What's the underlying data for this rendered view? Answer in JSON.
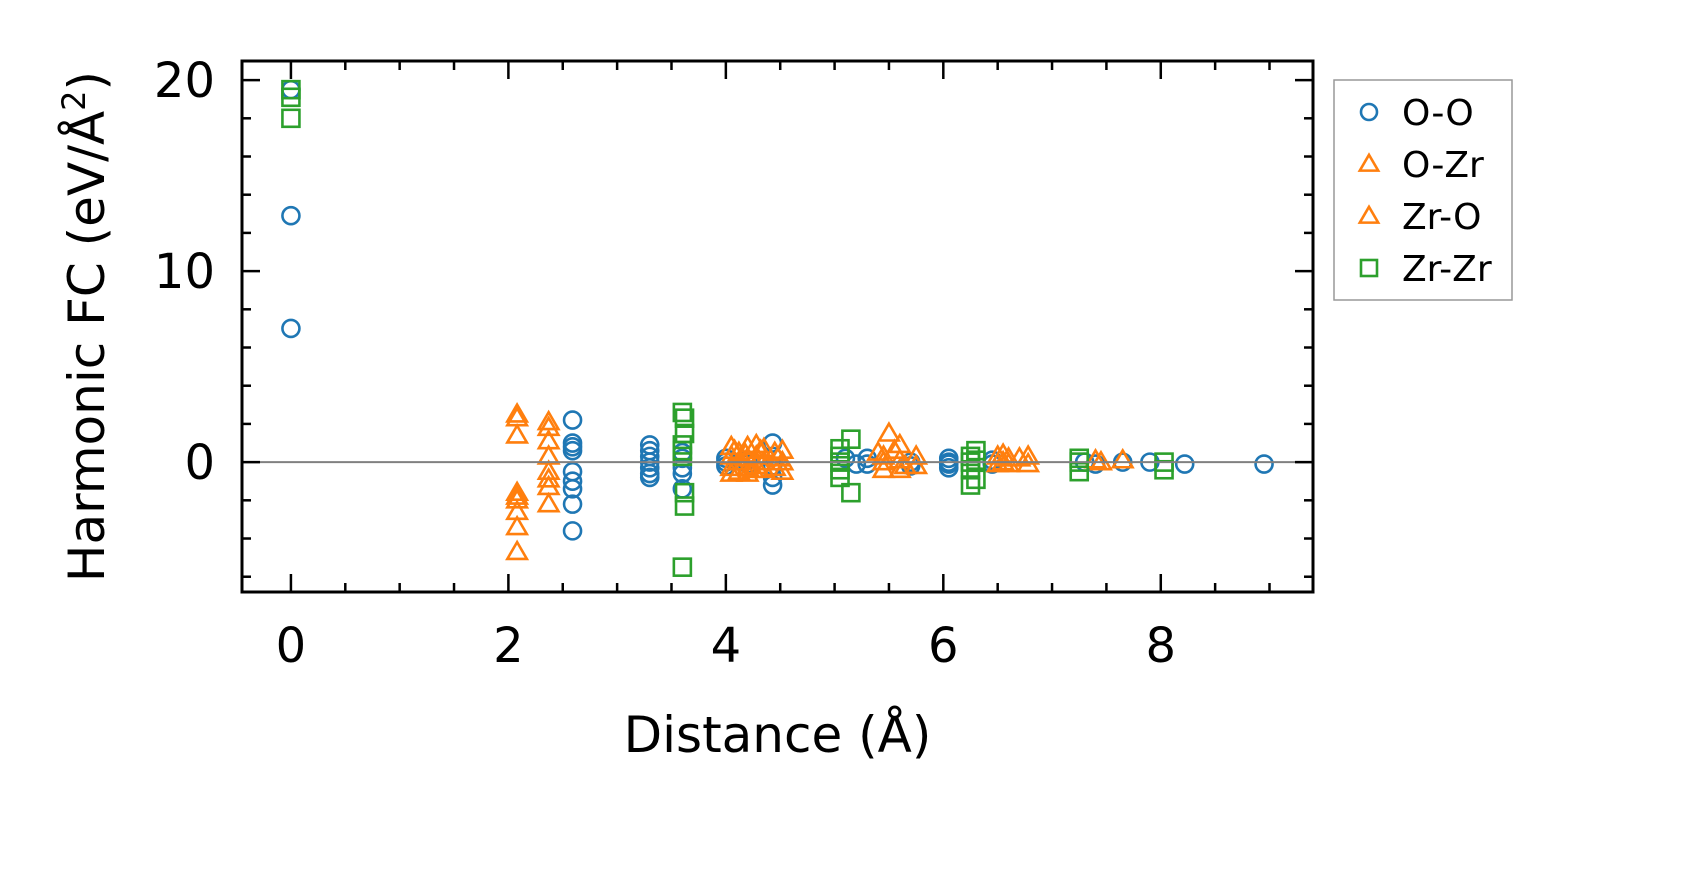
{
  "chart_data": {
    "type": "scatter",
    "title": "",
    "xlabel": "Distance (Å)",
    "ylabel_main": "Harmonic FC (eV/Å",
    "ylabel_sup": "2",
    "ylabel_close": ")",
    "xlim": [
      -0.45,
      9.4
    ],
    "ylim": [
      -6.8,
      21.0
    ],
    "xticks": [
      0,
      2,
      4,
      6,
      8
    ],
    "yticks": [
      0,
      10,
      20
    ],
    "xtick_labels": [
      "0",
      "2",
      "4",
      "6",
      "8"
    ],
    "ytick_labels": [
      "0",
      "10",
      "20"
    ],
    "x_minor_step": 0.5,
    "y_minor_step": 2,
    "zero_line": true,
    "grid": false,
    "legend_position": "outside-right-top",
    "series": [
      {
        "name": "O-O",
        "marker": "circle",
        "color": "#1f77b4",
        "points": [
          [
            0,
            19.5
          ],
          [
            0,
            12.9
          ],
          [
            0,
            7.0
          ],
          [
            2.59,
            2.2
          ],
          [
            2.59,
            1.0
          ],
          [
            2.59,
            0.8
          ],
          [
            2.59,
            0.6
          ],
          [
            2.59,
            -0.5
          ],
          [
            2.59,
            -1.0
          ],
          [
            2.59,
            -1.4
          ],
          [
            2.59,
            -2.2
          ],
          [
            2.59,
            -3.6
          ],
          [
            3.3,
            0.9
          ],
          [
            3.3,
            0.6
          ],
          [
            3.3,
            0.3
          ],
          [
            3.3,
            0.0
          ],
          [
            3.3,
            -0.3
          ],
          [
            3.3,
            -0.6
          ],
          [
            3.3,
            -0.8
          ],
          [
            3.6,
            0.5
          ],
          [
            3.6,
            0.2
          ],
          [
            3.6,
            -0.3
          ],
          [
            3.6,
            -0.6
          ],
          [
            3.6,
            -1.4
          ],
          [
            4.0,
            0.2
          ],
          [
            4.0,
            0.0
          ],
          [
            4.0,
            -0.2
          ],
          [
            4.2,
            0.1
          ],
          [
            4.2,
            -0.1
          ],
          [
            4.43,
            1.0
          ],
          [
            4.43,
            0.3
          ],
          [
            4.43,
            -0.2
          ],
          [
            4.43,
            -0.8
          ],
          [
            4.43,
            -1.2
          ],
          [
            5.1,
            0.2
          ],
          [
            5.2,
            -0.1
          ],
          [
            5.3,
            0.2
          ],
          [
            5.3,
            -0.1
          ],
          [
            5.7,
            0.0
          ],
          [
            5.7,
            -0.2
          ],
          [
            6.05,
            0.2
          ],
          [
            6.05,
            0.0
          ],
          [
            6.05,
            -0.1
          ],
          [
            6.05,
            -0.3
          ],
          [
            6.45,
            0.1
          ],
          [
            6.45,
            -0.1
          ],
          [
            7.3,
            0.0
          ],
          [
            7.4,
            -0.1
          ],
          [
            7.65,
            0.0
          ],
          [
            7.9,
            0.0
          ],
          [
            8.22,
            -0.1
          ],
          [
            8.95,
            -0.1
          ]
        ]
      },
      {
        "name": "O-Zr",
        "marker": "triangle",
        "color": "#ff7f0e",
        "points": [
          [
            2.08,
            2.5
          ],
          [
            2.08,
            1.4
          ],
          [
            2.08,
            -1.6
          ],
          [
            2.08,
            -2.0
          ],
          [
            2.08,
            -2.6
          ],
          [
            2.08,
            -3.4
          ],
          [
            2.08,
            -4.7
          ],
          [
            2.37,
            2.1
          ],
          [
            2.37,
            1.1
          ],
          [
            2.37,
            0.3
          ],
          [
            2.37,
            -0.5
          ],
          [
            2.37,
            -1.3
          ],
          [
            2.37,
            -2.2
          ],
          [
            4.05,
            0.8
          ],
          [
            4.05,
            0.3
          ],
          [
            4.05,
            -0.3
          ],
          [
            4.05,
            -0.6
          ],
          [
            4.12,
            0.5
          ],
          [
            4.12,
            0.0
          ],
          [
            4.12,
            -0.5
          ],
          [
            4.2,
            0.8
          ],
          [
            4.2,
            0.2
          ],
          [
            4.2,
            -0.3
          ],
          [
            4.2,
            -0.6
          ],
          [
            4.28,
            0.9
          ],
          [
            4.28,
            0.3
          ],
          [
            4.28,
            -0.2
          ],
          [
            4.35,
            0.7
          ],
          [
            4.35,
            0.0
          ],
          [
            4.35,
            -0.4
          ],
          [
            4.45,
            0.5
          ],
          [
            4.45,
            -0.3
          ],
          [
            4.52,
            0.6
          ],
          [
            4.52,
            0.0
          ],
          [
            4.52,
            -0.5
          ],
          [
            5.45,
            0.3
          ],
          [
            5.45,
            0.0
          ],
          [
            5.45,
            -0.4
          ],
          [
            5.5,
            1.5
          ],
          [
            5.6,
            0.9
          ],
          [
            5.6,
            0.1
          ],
          [
            5.6,
            -0.4
          ],
          [
            5.75,
            0.3
          ],
          [
            5.75,
            -0.2
          ],
          [
            6.5,
            0.3
          ],
          [
            6.5,
            -0.1
          ],
          [
            6.55,
            0.4
          ],
          [
            6.6,
            0.2
          ],
          [
            6.6,
            -0.1
          ],
          [
            6.78,
            0.3
          ],
          [
            6.78,
            -0.1
          ],
          [
            7.4,
            0.1
          ],
          [
            7.65,
            0.1
          ]
        ]
      },
      {
        "name": "Zr-O",
        "marker": "triangle",
        "color": "#ff7f0e",
        "points": [
          [
            2.08,
            2.3
          ],
          [
            2.08,
            -1.8
          ],
          [
            2.37,
            1.8
          ],
          [
            2.37,
            -0.9
          ],
          [
            4.08,
            0.6
          ],
          [
            4.18,
            0.4
          ],
          [
            4.25,
            -0.4
          ],
          [
            4.32,
            0.6
          ],
          [
            4.48,
            0.2
          ],
          [
            5.4,
            0.5
          ],
          [
            5.55,
            0.6
          ],
          [
            5.65,
            -0.2
          ],
          [
            6.55,
            0.0
          ],
          [
            6.7,
            0.2
          ],
          [
            7.45,
            0.0
          ]
        ]
      },
      {
        "name": "Zr-Zr",
        "marker": "square",
        "color": "#2ca02c",
        "points": [
          [
            0,
            19.5
          ],
          [
            0,
            19.1
          ],
          [
            0,
            18.0
          ],
          [
            3.6,
            2.6
          ],
          [
            3.62,
            2.3
          ],
          [
            3.62,
            1.5
          ],
          [
            3.6,
            0.9
          ],
          [
            3.6,
            0.6
          ],
          [
            3.6,
            0.3
          ],
          [
            3.62,
            -1.6
          ],
          [
            3.62,
            -2.3
          ],
          [
            3.6,
            -5.5
          ],
          [
            5.05,
            0.7
          ],
          [
            5.05,
            0.3
          ],
          [
            5.05,
            0.0
          ],
          [
            5.05,
            -0.4
          ],
          [
            5.05,
            -0.8
          ],
          [
            5.15,
            1.2
          ],
          [
            5.15,
            -1.6
          ],
          [
            6.25,
            0.3
          ],
          [
            6.25,
            0.0
          ],
          [
            6.25,
            -0.4
          ],
          [
            6.25,
            -1.2
          ],
          [
            6.3,
            0.6
          ],
          [
            6.3,
            0.1
          ],
          [
            6.3,
            -0.9
          ],
          [
            7.25,
            0.2
          ],
          [
            7.25,
            0.0
          ],
          [
            7.25,
            -0.5
          ],
          [
            8.03,
            0.0
          ],
          [
            8.03,
            -0.4
          ]
        ]
      }
    ]
  }
}
